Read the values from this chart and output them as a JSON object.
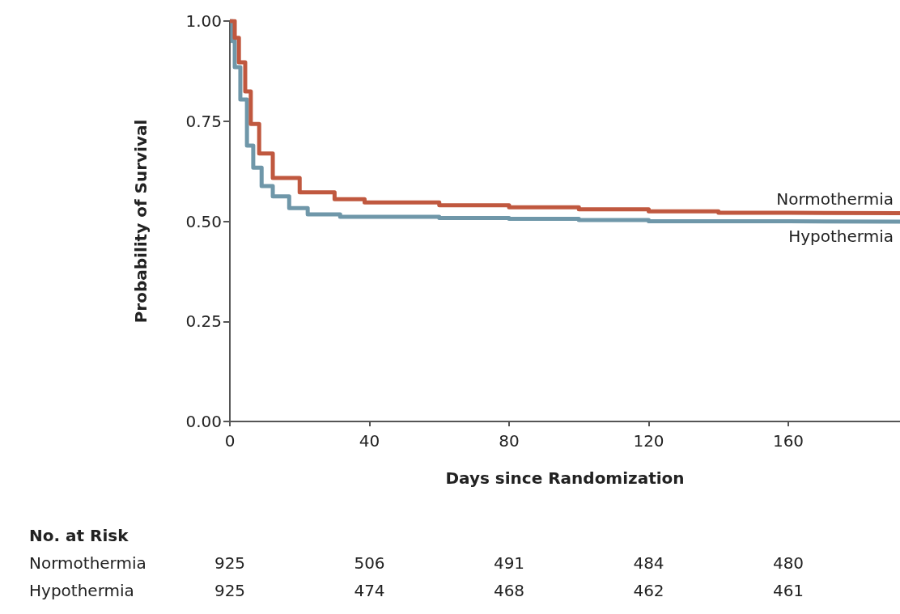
{
  "chart_data": {
    "type": "step",
    "xlabel": "Days since Randomization",
    "ylabel": "Probability of Survival",
    "xlim": [
      0,
      192
    ],
    "xticks": [
      0,
      40,
      80,
      120,
      160
    ],
    "ylim": [
      0,
      1
    ],
    "yticks": [
      {
        "value": 0,
        "label": "0.00"
      },
      {
        "value": 0.25,
        "label": "0.25"
      },
      {
        "value": 0.5,
        "label": "0.50"
      },
      {
        "value": 0.75,
        "label": "0.75"
      },
      {
        "value": 1,
        "label": "1.00"
      }
    ],
    "grid": false,
    "legend": false,
    "line_style": "solid",
    "series": [
      {
        "name": "Normothermia",
        "color": "#c0583f",
        "x": [
          0,
          1.4,
          2.6,
          4.4,
          6,
          8.4,
          12.3,
          20,
          30,
          38.6,
          60,
          80,
          100,
          120,
          140,
          160,
          192
        ],
        "values": [
          1,
          0.958,
          0.897,
          0.824,
          0.743,
          0.669,
          0.608,
          0.572,
          0.555,
          0.547,
          0.54,
          0.535,
          0.53,
          0.525,
          0.521,
          0.52,
          0.519
        ]
      },
      {
        "name": "Hypothermia",
        "color": "#6f97a9",
        "x": [
          0,
          0.7,
          1.4,
          3,
          4.9,
          6.7,
          9.1,
          12.3,
          17,
          22.3,
          31.6,
          40,
          60,
          80,
          100,
          120,
          160,
          192
        ],
        "values": [
          1,
          0.95,
          0.885,
          0.804,
          0.689,
          0.634,
          0.588,
          0.562,
          0.533,
          0.517,
          0.511,
          0.511,
          0.508,
          0.506,
          0.503,
          0.5,
          0.499,
          0.499
        ]
      }
    ],
    "annotations": [
      "No. at Risk",
      "Normothermia 925 506 491 484 480",
      "Hypothermia 925 474 468 462 461"
    ]
  }
}
